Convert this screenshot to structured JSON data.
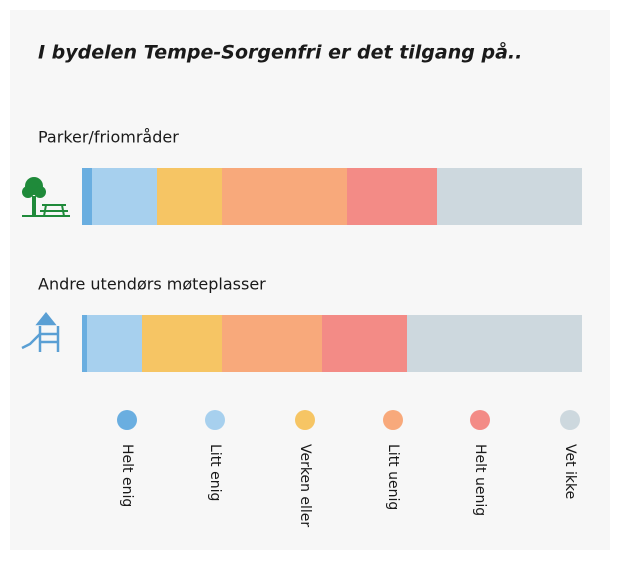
{
  "chart_data": {
    "type": "bar",
    "orientation": "horizontal",
    "stacked": true,
    "title": "I bydelen Tempe-Sorgenfri er det tilgang på..",
    "categories": [
      "Parker/friområder",
      "Andre utendørs møteplasser"
    ],
    "xlim": [
      0,
      100
    ],
    "series": [
      {
        "name": "Helt enig",
        "color": "#6aaee0",
        "values": [
          2,
          1
        ]
      },
      {
        "name": "Litt enig",
        "color": "#a7d0ee",
        "values": [
          13,
          11
        ]
      },
      {
        "name": "Verken eller",
        "color": "#f6c564",
        "values": [
          13,
          16
        ]
      },
      {
        "name": "Litt uenig",
        "color": "#f8a97b",
        "values": [
          25,
          20
        ]
      },
      {
        "name": "Helt uenig",
        "color": "#f38b86",
        "values": [
          18,
          17
        ]
      },
      {
        "name": "Vet ikke",
        "color": "#cdd8de",
        "values": [
          29,
          35
        ]
      }
    ]
  }
}
